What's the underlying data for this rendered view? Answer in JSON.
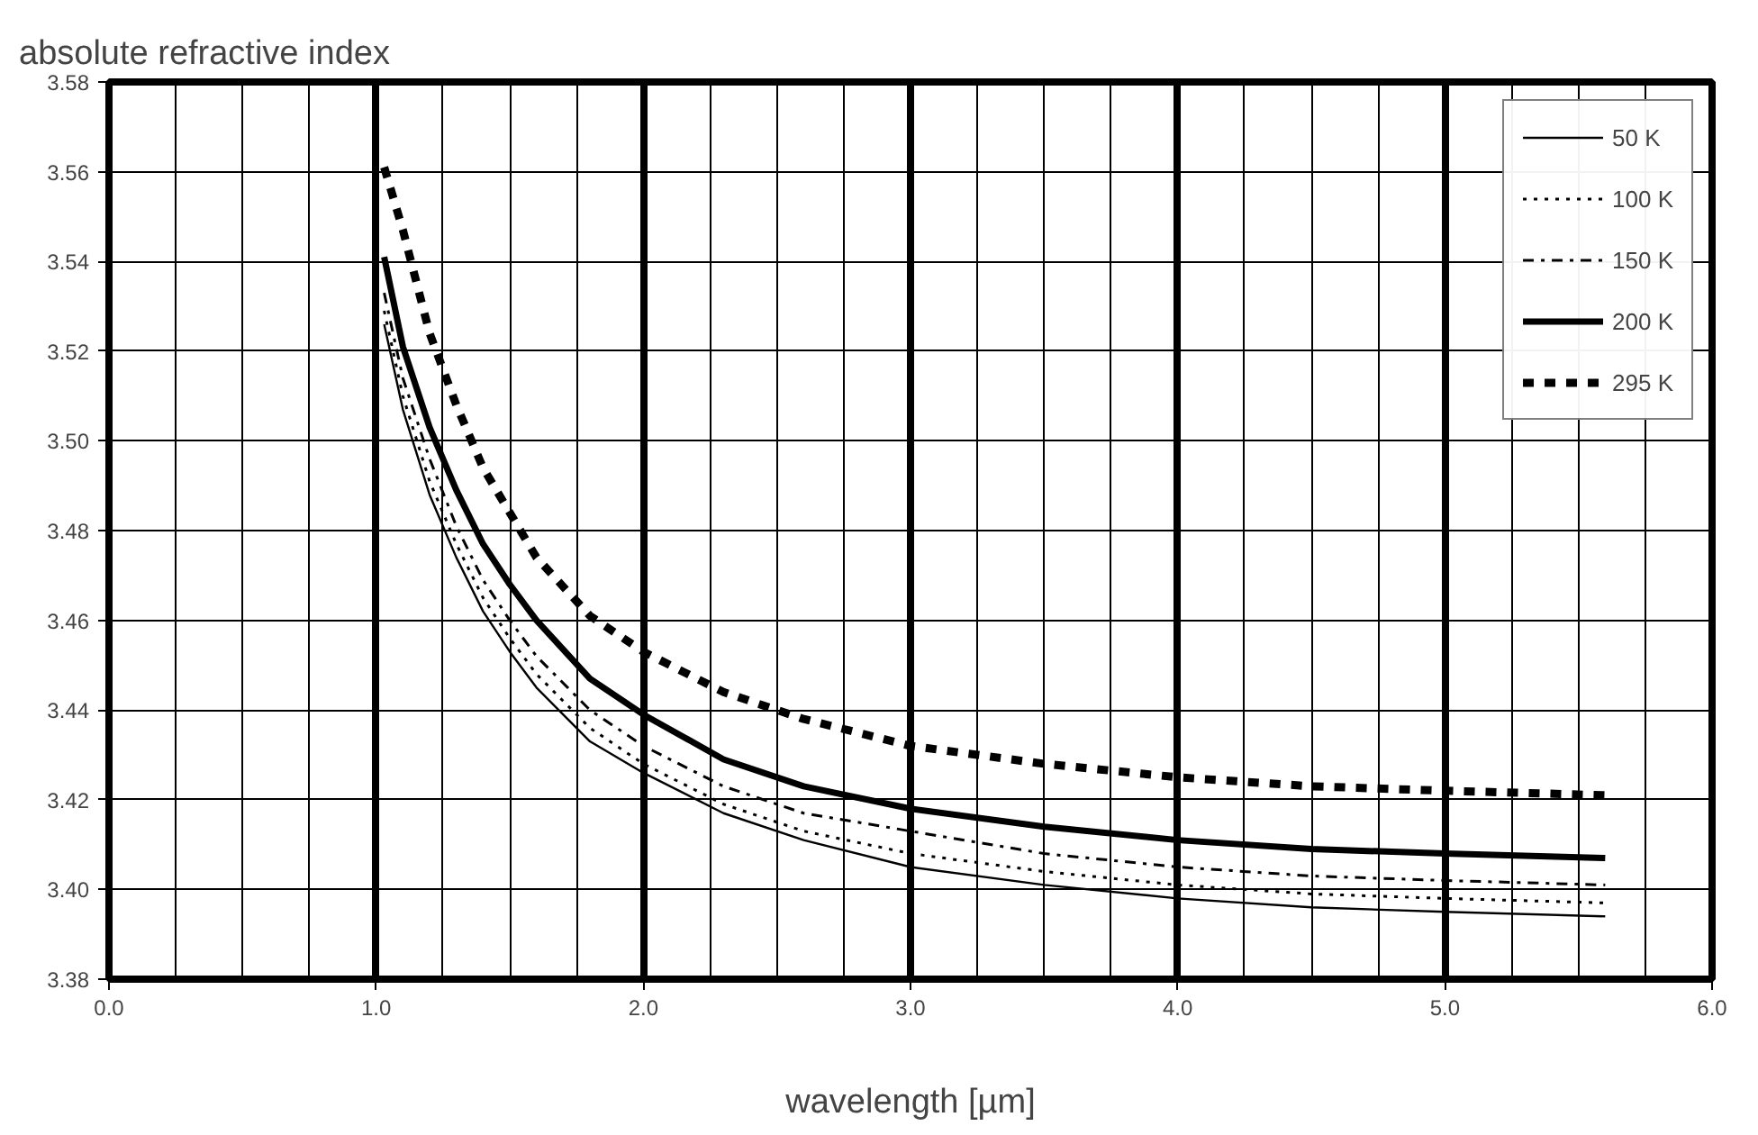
{
  "chart_data": {
    "type": "line",
    "ylabel": "absolute refractive index",
    "xlabel": "wavelength [µm]",
    "x": [
      1.03,
      1.1,
      1.2,
      1.3,
      1.4,
      1.5,
      1.6,
      1.8,
      2.0,
      2.3,
      2.6,
      3.0,
      3.5,
      4.0,
      4.5,
      5.0,
      5.6
    ],
    "series": [
      {
        "name": "50 K",
        "color": "#000000",
        "line_style": "solid",
        "values": [
          3.526,
          3.507,
          3.488,
          3.474,
          3.462,
          3.453,
          3.445,
          3.433,
          3.426,
          3.417,
          3.411,
          3.405,
          3.401,
          3.398,
          3.396,
          3.395,
          3.394
        ]
      },
      {
        "name": "100 K",
        "color": "#000000",
        "line_style": "dotted",
        "values": [
          3.529,
          3.51,
          3.491,
          3.477,
          3.465,
          3.456,
          3.448,
          3.436,
          3.428,
          3.419,
          3.413,
          3.408,
          3.404,
          3.401,
          3.399,
          3.398,
          3.397
        ]
      },
      {
        "name": "150 K",
        "color": "#000000",
        "line_style": "dashdot",
        "values": [
          3.533,
          3.514,
          3.496,
          3.481,
          3.469,
          3.46,
          3.452,
          3.44,
          3.432,
          3.423,
          3.417,
          3.413,
          3.408,
          3.405,
          3.403,
          3.402,
          3.401
        ]
      },
      {
        "name": "200 K",
        "color": "#000000",
        "line_style": "solid",
        "values": [
          3.541,
          3.521,
          3.503,
          3.489,
          3.477,
          3.468,
          3.46,
          3.447,
          3.439,
          3.429,
          3.423,
          3.418,
          3.414,
          3.411,
          3.409,
          3.408,
          3.407
        ]
      },
      {
        "name": "295 K",
        "color": "#000000",
        "line_style": "dashed",
        "values": [
          3.561,
          3.547,
          3.524,
          3.508,
          3.494,
          3.484,
          3.474,
          3.461,
          3.453,
          3.444,
          3.438,
          3.432,
          3.428,
          3.425,
          3.423,
          3.422,
          3.421
        ]
      }
    ],
    "xlim": [
      0,
      6
    ],
    "ylim": [
      3.38,
      3.58
    ],
    "xticks": [
      {
        "value": 0,
        "label": "0.0"
      },
      {
        "value": 1,
        "label": "1.0"
      },
      {
        "value": 2,
        "label": "2.0"
      },
      {
        "value": 3,
        "label": "3.0"
      },
      {
        "value": 4,
        "label": "4.0"
      },
      {
        "value": 5,
        "label": "5.0"
      },
      {
        "value": 6,
        "label": "6.0"
      }
    ],
    "yticks": [
      {
        "value": 3.38,
        "label": "3.38"
      },
      {
        "value": 3.4,
        "label": "3.40"
      },
      {
        "value": 3.42,
        "label": "3.42"
      },
      {
        "value": 3.44,
        "label": "3.44"
      },
      {
        "value": 3.46,
        "label": "3.46"
      },
      {
        "value": 3.48,
        "label": "3.48"
      },
      {
        "value": 3.5,
        "label": "3.50"
      },
      {
        "value": 3.52,
        "label": "3.52"
      },
      {
        "value": 3.54,
        "label": "3.54"
      },
      {
        "value": 3.56,
        "label": "3.56"
      },
      {
        "value": 3.58,
        "label": "3.58"
      }
    ],
    "grid": true,
    "legend": "top right",
    "marker": "none"
  }
}
